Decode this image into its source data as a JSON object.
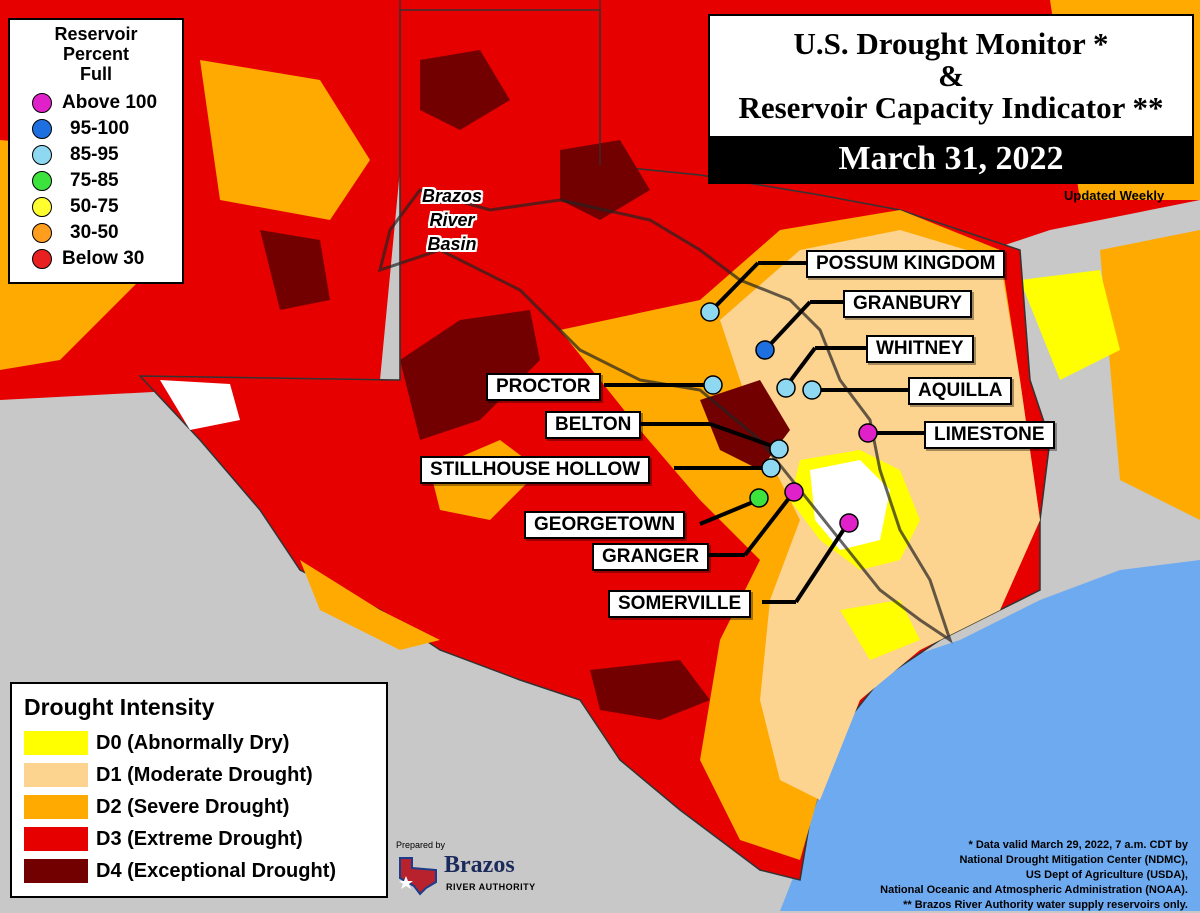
{
  "title": {
    "line1": "U.S. Drought Monitor *",
    "line2": "&",
    "line3": "Reservoir Capacity Indicator **",
    "date": "March 31, 2022",
    "updated": "Updated Weekly"
  },
  "reservoir_legend": {
    "title_lines": [
      "Reservoir",
      "Percent",
      "Full"
    ],
    "items": [
      {
        "label": "Above 100",
        "color": "#e020c8"
      },
      {
        "label": "95-100",
        "color": "#1e6fe0"
      },
      {
        "label": "85-95",
        "color": "#8fd8f2"
      },
      {
        "label": "75-85",
        "color": "#3ce33c"
      },
      {
        "label": "50-75",
        "color": "#ffff30"
      },
      {
        "label": "30-50",
        "color": "#ff9d1e"
      },
      {
        "label": "Below 30",
        "color": "#e82020"
      }
    ]
  },
  "basin_label": [
    "Brazos",
    "River",
    "Basin"
  ],
  "reservoirs": [
    {
      "name": "POSSUM KINGDOM",
      "color": "#8fd8f2"
    },
    {
      "name": "GRANBURY",
      "color": "#1e6fe0"
    },
    {
      "name": "WHITNEY",
      "color": "#8fd8f2"
    },
    {
      "name": "AQUILLA",
      "color": "#8fd8f2"
    },
    {
      "name": "PROCTOR",
      "color": "#8fd8f2"
    },
    {
      "name": "LIMESTONE",
      "color": "#e020c8"
    },
    {
      "name": "BELTON",
      "color": "#8fd8f2"
    },
    {
      "name": "STILLHOUSE HOLLOW",
      "color": "#8fd8f2"
    },
    {
      "name": "GEORGETOWN",
      "color": "#3ce33c"
    },
    {
      "name": "GRANGER",
      "color": "#e020c8"
    },
    {
      "name": "SOMERVILLE",
      "color": "#e020c8"
    }
  ],
  "drought_legend": {
    "title": "Drought Intensity",
    "items": [
      {
        "label": "D0 (Abnormally Dry)",
        "color": "#ffff00"
      },
      {
        "label": "D1 (Moderate Drought)",
        "color": "#fcd38f"
      },
      {
        "label": "D2 (Severe Drought)",
        "color": "#ffaa00"
      },
      {
        "label": "D3 (Extreme Drought)",
        "color": "#e60000"
      },
      {
        "label": "D4 (Exceptional Drought)",
        "color": "#730000"
      }
    ]
  },
  "credit": {
    "prepared": "Prepared by",
    "org": "Brazos",
    "org_sub": "RIVER AUTHORITY"
  },
  "notes": [
    "* Data valid March 29, 2022, 7 a.m. CDT by",
    "National Drought Mitigation Center (NDMC),",
    "US Dept of Agriculture (USDA),",
    "National Oceanic and Atmospheric Administration (NOAA).",
    "** Brazos River Authority water supply reservoirs only."
  ]
}
